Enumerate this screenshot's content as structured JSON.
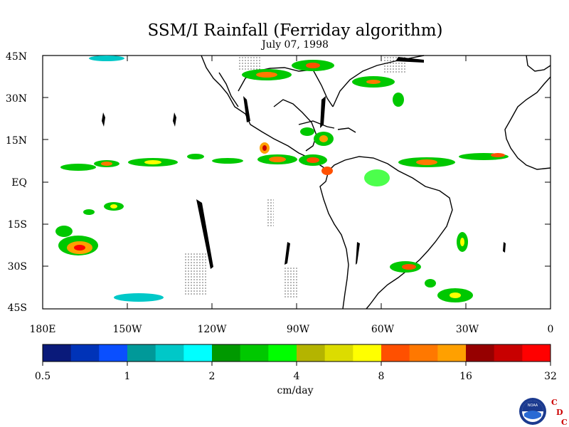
{
  "title": "SSM/I Rainfall (Ferriday algorithm)",
  "subtitle": "July 07, 1998",
  "map": {
    "lat_labels": [
      "45N",
      "30N",
      "15N",
      "EQ",
      "15S",
      "30S",
      "45S"
    ],
    "lon_labels": [
      "180E",
      "150W",
      "120W",
      "90W",
      "60W",
      "30W",
      "0"
    ],
    "extent": {
      "lon_min": -180,
      "lon_max": 0,
      "lat_min": -45,
      "lat_max": 45
    }
  },
  "colorbar": {
    "colors": [
      "#0a1a7a",
      "#0033b8",
      "#0a4fff",
      "#009999",
      "#00c8c8",
      "#00ffff",
      "#009900",
      "#00c800",
      "#00ff00",
      "#b4b400",
      "#dcdc00",
      "#ffff00",
      "#ff5000",
      "#ff7800",
      "#ffa000",
      "#960000",
      "#c80000",
      "#ff0000"
    ],
    "tick_labels": [
      "0.5",
      "1",
      "2",
      "4",
      "8",
      "16",
      "32"
    ],
    "units": "cm/day"
  },
  "logo": {
    "noaa_text": "NOAA",
    "cdc_letters": [
      "C",
      "D",
      "C"
    ],
    "cdc_color": "#cc0000"
  },
  "chart_data": {
    "type": "heatmap",
    "title": "SSM/I Rainfall (Ferriday algorithm)",
    "subtitle": "July 07, 1998",
    "variable": "rain rate",
    "units": "cm/day",
    "scale": "log2",
    "colorbar_ticks": [
      0.5,
      1,
      2,
      4,
      8,
      16,
      32
    ],
    "xlim": [
      -180,
      0
    ],
    "ylim": [
      -45,
      45
    ],
    "x_ticks": [
      "180E",
      "150W",
      "120W",
      "90W",
      "60W",
      "30W",
      "0"
    ],
    "y_ticks": [
      "45N",
      "30N",
      "15N",
      "EQ",
      "15S",
      "30S",
      "45S"
    ],
    "rain_bands": [
      {
        "lon_range": [
          -175,
          -85
        ],
        "lat_range": [
          3,
          9
        ],
        "peak_cm_per_day": 8
      },
      {
        "lon_range": [
          -90,
          -75
        ],
        "lat_range": [
          5,
          15
        ],
        "peak_cm_per_day": 16
      },
      {
        "lon_range": [
          -60,
          -5
        ],
        "lat_range": [
          5,
          12
        ],
        "peak_cm_per_day": 16
      },
      {
        "lon_range": [
          -175,
          -160
        ],
        "lat_range": [
          -30,
          -15
        ],
        "peak_cm_per_day": 32
      },
      {
        "lon_range": [
          -110,
          -45
        ],
        "lat_range": [
          35,
          45
        ],
        "peak_cm_per_day": 16
      },
      {
        "lon_range": [
          -50,
          -35
        ],
        "lat_range": [
          -35,
          -28
        ],
        "peak_cm_per_day": 16
      },
      {
        "lon_range": [
          -40,
          -30
        ],
        "lat_range": [
          -45,
          -38
        ],
        "peak_cm_per_day": 8
      }
    ]
  }
}
